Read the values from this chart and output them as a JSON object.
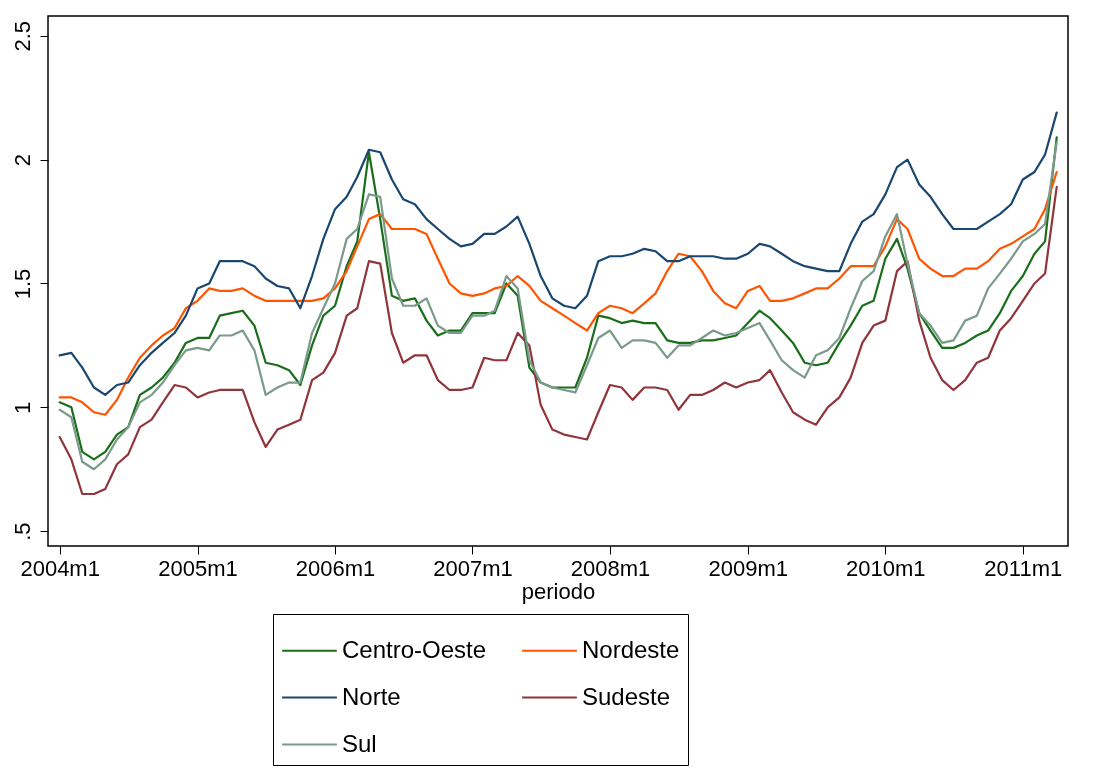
{
  "chart_data": {
    "type": "line",
    "xlabel": "periodo",
    "x": [
      "2004-01",
      "2004-02",
      "2004-03",
      "2004-04",
      "2004-05",
      "2004-06",
      "2004-07",
      "2004-08",
      "2004-09",
      "2004-10",
      "2004-11",
      "2004-12",
      "2005-01",
      "2005-02",
      "2005-03",
      "2005-04",
      "2005-05",
      "2005-06",
      "2005-07",
      "2005-08",
      "2005-09",
      "2005-10",
      "2005-11",
      "2005-12",
      "2006-01",
      "2006-02",
      "2006-03",
      "2006-04",
      "2006-05",
      "2006-06",
      "2006-07",
      "2006-08",
      "2006-09",
      "2006-10",
      "2006-11",
      "2006-12",
      "2007-01",
      "2007-02",
      "2007-03",
      "2007-04",
      "2007-05",
      "2007-06",
      "2007-07",
      "2007-08",
      "2007-09",
      "2007-10",
      "2007-11",
      "2007-12",
      "2008-01",
      "2008-02",
      "2008-03",
      "2008-04",
      "2008-05",
      "2008-06",
      "2008-07",
      "2008-08",
      "2008-09",
      "2008-10",
      "2008-11",
      "2008-12",
      "2009-01",
      "2009-02",
      "2009-03",
      "2009-04",
      "2009-05",
      "2009-06",
      "2009-07",
      "2009-08",
      "2009-09",
      "2009-10",
      "2009-11",
      "2009-12",
      "2010-01",
      "2010-02",
      "2010-03",
      "2010-04",
      "2010-05",
      "2010-06",
      "2010-07",
      "2010-08",
      "2010-09",
      "2010-10",
      "2010-11",
      "2010-12",
      "2011-01",
      "2011-02",
      "2011-03",
      "2011-04"
    ],
    "series": [
      {
        "name": "Centro-Oeste",
        "color": "#1a6e1a",
        "values": [
          1.02,
          1.0,
          0.82,
          0.79,
          0.82,
          0.89,
          0.92,
          1.05,
          1.08,
          1.12,
          1.18,
          1.26,
          1.28,
          1.28,
          1.37,
          1.38,
          1.39,
          1.33,
          1.18,
          1.17,
          1.15,
          1.09,
          1.25,
          1.37,
          1.41,
          1.57,
          1.67,
          2.03,
          1.76,
          1.45,
          1.43,
          1.44,
          1.35,
          1.29,
          1.31,
          1.31,
          1.38,
          1.38,
          1.38,
          1.5,
          1.45,
          1.16,
          1.1,
          1.08,
          1.08,
          1.08,
          1.2,
          1.37,
          1.36,
          1.34,
          1.35,
          1.34,
          1.34,
          1.27,
          1.26,
          1.26,
          1.27,
          1.27,
          1.28,
          1.29,
          1.34,
          1.39,
          1.36,
          1.31,
          1.26,
          1.18,
          1.17,
          1.18,
          1.26,
          1.33,
          1.41,
          1.43,
          1.6,
          1.68,
          1.56,
          1.38,
          1.31,
          1.24,
          1.24,
          1.26,
          1.29,
          1.31,
          1.38,
          1.47,
          1.53,
          1.62,
          1.67,
          2.09
        ]
      },
      {
        "name": "Nordeste",
        "color": "#ff5500",
        "values": [
          1.04,
          1.04,
          1.02,
          0.98,
          0.97,
          1.03,
          1.12,
          1.2,
          1.25,
          1.29,
          1.32,
          1.4,
          1.43,
          1.48,
          1.47,
          1.47,
          1.48,
          1.45,
          1.43,
          1.43,
          1.43,
          1.43,
          1.43,
          1.44,
          1.48,
          1.55,
          1.65,
          1.76,
          1.78,
          1.72,
          1.72,
          1.72,
          1.7,
          1.6,
          1.5,
          1.46,
          1.45,
          1.46,
          1.48,
          1.49,
          1.53,
          1.49,
          1.43,
          1.4,
          1.37,
          1.34,
          1.31,
          1.38,
          1.41,
          1.4,
          1.38,
          1.42,
          1.46,
          1.55,
          1.62,
          1.61,
          1.55,
          1.47,
          1.42,
          1.4,
          1.47,
          1.49,
          1.43,
          1.43,
          1.44,
          1.46,
          1.48,
          1.48,
          1.52,
          1.57,
          1.57,
          1.57,
          1.65,
          1.76,
          1.72,
          1.6,
          1.56,
          1.53,
          1.53,
          1.56,
          1.56,
          1.59,
          1.64,
          1.66,
          1.69,
          1.72,
          1.8,
          1.95
        ]
      },
      {
        "name": "Norte",
        "color": "#1a476f",
        "values": [
          1.21,
          1.22,
          1.16,
          1.08,
          1.05,
          1.09,
          1.1,
          1.17,
          1.22,
          1.26,
          1.3,
          1.37,
          1.48,
          1.5,
          1.59,
          1.59,
          1.59,
          1.57,
          1.52,
          1.49,
          1.48,
          1.4,
          1.53,
          1.68,
          1.8,
          1.85,
          1.93,
          2.04,
          2.03,
          1.92,
          1.84,
          1.82,
          1.76,
          1.72,
          1.68,
          1.65,
          1.66,
          1.7,
          1.7,
          1.73,
          1.77,
          1.66,
          1.53,
          1.44,
          1.41,
          1.4,
          1.45,
          1.59,
          1.61,
          1.61,
          1.62,
          1.64,
          1.63,
          1.59,
          1.59,
          1.61,
          1.61,
          1.61,
          1.6,
          1.6,
          1.62,
          1.66,
          1.65,
          1.62,
          1.59,
          1.57,
          1.56,
          1.55,
          1.55,
          1.66,
          1.75,
          1.78,
          1.86,
          1.97,
          2.0,
          1.9,
          1.85,
          1.78,
          1.72,
          1.72,
          1.72,
          1.75,
          1.78,
          1.82,
          1.92,
          1.95,
          2.02,
          2.19
        ]
      },
      {
        "name": "Sudeste",
        "color": "#90353b",
        "values": [
          0.88,
          0.79,
          0.65,
          0.65,
          0.67,
          0.77,
          0.81,
          0.92,
          0.95,
          1.02,
          1.09,
          1.08,
          1.04,
          1.06,
          1.07,
          1.07,
          1.07,
          0.94,
          0.84,
          0.91,
          0.93,
          0.95,
          1.11,
          1.14,
          1.22,
          1.37,
          1.4,
          1.59,
          1.58,
          1.3,
          1.18,
          1.21,
          1.21,
          1.11,
          1.07,
          1.07,
          1.08,
          1.2,
          1.19,
          1.19,
          1.3,
          1.25,
          1.01,
          0.91,
          0.89,
          0.88,
          0.87,
          0.98,
          1.09,
          1.08,
          1.03,
          1.08,
          1.08,
          1.07,
          0.99,
          1.05,
          1.05,
          1.07,
          1.1,
          1.08,
          1.1,
          1.11,
          1.15,
          1.06,
          0.98,
          0.95,
          0.93,
          1.0,
          1.04,
          1.12,
          1.26,
          1.33,
          1.35,
          1.55,
          1.59,
          1.35,
          1.2,
          1.11,
          1.07,
          1.11,
          1.18,
          1.2,
          1.31,
          1.36,
          1.43,
          1.5,
          1.54,
          1.89
        ]
      },
      {
        "name": "Sul",
        "color": "#7a9a8a",
        "values": [
          0.99,
          0.96,
          0.78,
          0.75,
          0.79,
          0.87,
          0.92,
          1.02,
          1.05,
          1.1,
          1.17,
          1.23,
          1.24,
          1.23,
          1.29,
          1.29,
          1.31,
          1.23,
          1.05,
          1.08,
          1.1,
          1.1,
          1.3,
          1.4,
          1.5,
          1.68,
          1.72,
          1.86,
          1.85,
          1.52,
          1.41,
          1.41,
          1.44,
          1.33,
          1.3,
          1.3,
          1.37,
          1.37,
          1.39,
          1.53,
          1.48,
          1.19,
          1.1,
          1.08,
          1.07,
          1.06,
          1.17,
          1.28,
          1.31,
          1.24,
          1.27,
          1.27,
          1.26,
          1.2,
          1.25,
          1.25,
          1.28,
          1.31,
          1.29,
          1.3,
          1.32,
          1.34,
          1.27,
          1.19,
          1.15,
          1.12,
          1.21,
          1.23,
          1.28,
          1.4,
          1.51,
          1.55,
          1.69,
          1.78,
          1.58,
          1.38,
          1.33,
          1.26,
          1.27,
          1.35,
          1.37,
          1.48,
          1.54,
          1.6,
          1.67,
          1.7,
          1.74,
          2.07
        ]
      }
    ],
    "xlim": [
      "2003-12",
      "2011-05"
    ],
    "xticks": [
      {
        "value": "2004-01",
        "label": "2004m1"
      },
      {
        "value": "2005-01",
        "label": "2005m1"
      },
      {
        "value": "2006-01",
        "label": "2006m1"
      },
      {
        "value": "2007-01",
        "label": "2007m1"
      },
      {
        "value": "2008-01",
        "label": "2008m1"
      },
      {
        "value": "2009-01",
        "label": "2009m1"
      },
      {
        "value": "2010-01",
        "label": "2010m1"
      },
      {
        "value": "2011-01",
        "label": "2011m1"
      }
    ],
    "ylim": [
      0.44,
      2.58
    ],
    "yticks": [
      {
        "value": 0.5,
        "label": ".5"
      },
      {
        "value": 1,
        "label": "1"
      },
      {
        "value": 1.5,
        "label": "1.5"
      },
      {
        "value": 2,
        "label": "2"
      },
      {
        "value": 2.5,
        "label": "2.5"
      }
    ],
    "grid": false,
    "legend": "bottom",
    "line_style": "solid"
  }
}
